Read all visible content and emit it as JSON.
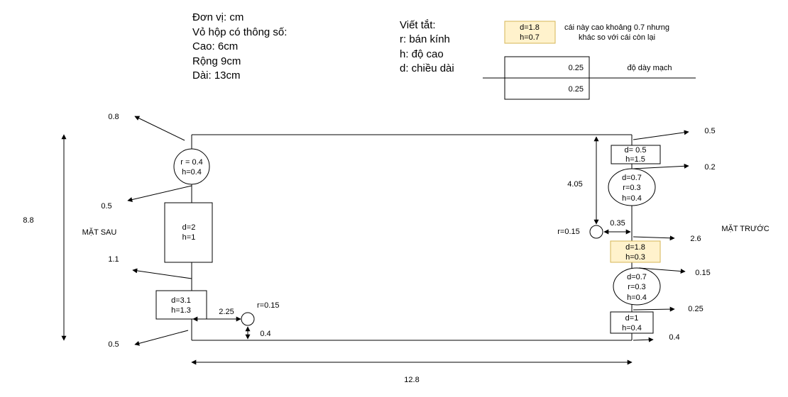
{
  "units": {
    "lines": [
      "Đơn vị: cm",
      "Vỏ hộp có thông số:",
      "Cao: 6cm",
      "Rộng 9cm",
      "Dài: 13cm"
    ]
  },
  "legend": {
    "title": "Viết tắt:",
    "items": [
      "r: bán kính",
      "h: độ cao",
      "d: chiều dài"
    ]
  },
  "note": {
    "box": [
      "d=1.8",
      "h=0.7"
    ],
    "text": [
      "cái này cao khoảng 0.7 nhưng",
      "khác so với cái còn lại"
    ]
  },
  "thickness": {
    "top": "0.25",
    "bottom": "0.25",
    "label": "độ dày mạch"
  },
  "labels": {
    "back": "MẶT SAU",
    "front": "MẶT TRƯỚC",
    "height": "8.8",
    "width": "12.8",
    "dist_top_hole": "4.05",
    "dist_hole_edge": "0.35",
    "hole_radius_right": "r=0.15",
    "hole_radius_bottom": "r=0.15",
    "dist_bottom_hole_x": "2.25",
    "dist_bottom_hole_y": "0.4"
  },
  "left_components": [
    {
      "lines": [
        "r = 0.4",
        "h=0.4"
      ]
    },
    {
      "lines": [
        "d=2",
        "h=1"
      ]
    },
    {
      "lines": [
        "d=3.1",
        "h=1.3"
      ]
    }
  ],
  "left_offsets": [
    "0.8",
    "0.5",
    "1.1",
    "0.5"
  ],
  "right_components": [
    {
      "lines": [
        "d= 0.5",
        "h=1.5"
      ]
    },
    {
      "lines": [
        "d=0.7",
        "r=0.3",
        "h=0.4"
      ]
    },
    {
      "lines": [
        "d=1.8",
        "h=0.3"
      ]
    },
    {
      "lines": [
        "d=0.7",
        "r=0.3",
        "h=0.4"
      ]
    },
    {
      "lines": [
        "d=1",
        "h=0.4"
      ]
    }
  ],
  "right_offsets": [
    "0.5",
    "0.2",
    "2.6",
    "0.15",
    "0.25",
    "0.4"
  ],
  "colors": {
    "highlight_fill": "#fff2cc",
    "highlight_stroke": "#d6b656"
  }
}
